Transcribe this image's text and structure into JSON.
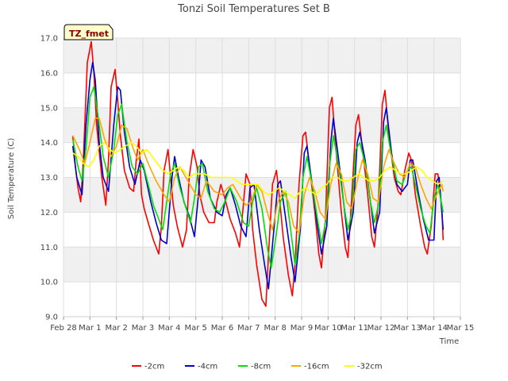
{
  "chart_data": {
    "type": "line",
    "title": "Tonzi Soil Temperatures Set B",
    "xlabel": "Time",
    "ylabel": "Soil Temperature (C)",
    "ylim": [
      9.0,
      17.0
    ],
    "xlim": [
      0,
      15
    ],
    "yticks": [
      "9.0",
      "10.0",
      "11.0",
      "12.0",
      "13.0",
      "14.0",
      "15.0",
      "16.0",
      "17.0"
    ],
    "xticks": [
      "Feb 28",
      "Mar 1",
      "Mar 2",
      "Mar 3",
      "Mar 4",
      "Mar 5",
      "Mar 6",
      "Mar 7",
      "Mar 8",
      "Mar 9",
      "Mar 10",
      "Mar 11",
      "Mar 12",
      "Mar 13",
      "Mar 14",
      "Mar 15"
    ],
    "grid": true,
    "legend_position": "bottom",
    "tag_label": "TZ_fmet",
    "series": [
      {
        "name": "-2cm",
        "color": "#ff0000",
        "x": [
          0.35,
          0.45,
          0.55,
          0.65,
          0.75,
          0.9,
          1.05,
          1.15,
          1.25,
          1.45,
          1.6,
          1.7,
          1.8,
          1.95,
          2.05,
          2.15,
          2.3,
          2.5,
          2.65,
          2.75,
          2.85,
          2.95,
          3.05,
          3.2,
          3.4,
          3.6,
          3.7,
          3.8,
          3.95,
          4.05,
          4.15,
          4.3,
          4.5,
          4.65,
          4.75,
          4.9,
          5.05,
          5.15,
          5.3,
          5.5,
          5.7,
          5.8,
          5.95,
          6.1,
          6.3,
          6.5,
          6.65,
          6.75,
          6.9,
          7.05,
          7.15,
          7.3,
          7.5,
          7.65,
          7.75,
          7.9,
          8.05,
          8.15,
          8.3,
          8.5,
          8.65,
          8.75,
          8.9,
          9.05,
          9.15,
          9.3,
          9.5,
          9.65,
          9.75,
          9.9,
          10.05,
          10.15,
          10.3,
          10.5,
          10.65,
          10.75,
          10.9,
          11.05,
          11.15,
          11.3,
          11.5,
          11.65,
          11.75,
          11.9,
          12.05,
          12.15,
          12.3,
          12.5,
          12.65,
          12.75,
          12.9,
          13.05,
          13.15,
          13.3,
          13.5,
          13.65,
          13.75,
          13.9,
          14.05,
          14.15,
          14.3,
          14.35
        ],
        "y": [
          14.2,
          13.3,
          12.7,
          12.3,
          13.5,
          16.3,
          16.9,
          16.0,
          14.5,
          13.0,
          12.2,
          13.5,
          15.6,
          16.1,
          15.2,
          14.2,
          13.2,
          12.7,
          12.6,
          13.5,
          14.1,
          12.5,
          12.1,
          11.7,
          11.2,
          10.8,
          11.6,
          13.2,
          13.8,
          13.0,
          12.2,
          11.6,
          11.0,
          11.5,
          13.0,
          13.8,
          13.3,
          12.5,
          12.0,
          11.7,
          11.7,
          12.3,
          12.8,
          12.4,
          11.8,
          11.4,
          11.0,
          11.8,
          13.1,
          12.8,
          11.5,
          10.5,
          9.5,
          9.3,
          10.8,
          12.8,
          13.2,
          12.5,
          11.3,
          10.2,
          9.6,
          10.5,
          12.8,
          14.2,
          14.3,
          13.3,
          12.0,
          10.8,
          10.4,
          11.8,
          15.0,
          15.3,
          13.8,
          12.0,
          11.0,
          10.7,
          12.5,
          14.5,
          14.8,
          13.8,
          12.5,
          11.3,
          11.0,
          12.3,
          15.1,
          15.5,
          14.2,
          13.0,
          12.6,
          12.5,
          13.2,
          13.7,
          13.5,
          12.5,
          11.6,
          11.0,
          10.8,
          11.6,
          13.1,
          13.1,
          12.1,
          11.2
        ]
      },
      {
        "name": "-4cm",
        "color": "#0000cc",
        "x": [
          0.35,
          0.5,
          0.7,
          0.85,
          1.0,
          1.1,
          1.2,
          1.35,
          1.5,
          1.7,
          1.9,
          2.05,
          2.15,
          2.3,
          2.5,
          2.7,
          2.9,
          3.05,
          3.3,
          3.5,
          3.7,
          3.9,
          4.1,
          4.2,
          4.35,
          4.55,
          4.75,
          4.95,
          5.1,
          5.2,
          5.35,
          5.55,
          5.8,
          6.0,
          6.15,
          6.3,
          6.5,
          6.7,
          6.9,
          7.05,
          7.2,
          7.4,
          7.6,
          7.75,
          7.95,
          8.1,
          8.2,
          8.4,
          8.6,
          8.75,
          8.95,
          9.1,
          9.2,
          9.4,
          9.6,
          9.75,
          9.95,
          10.1,
          10.2,
          10.4,
          10.6,
          10.75,
          10.95,
          11.1,
          11.2,
          11.4,
          11.6,
          11.75,
          11.95,
          12.1,
          12.2,
          12.4,
          12.6,
          12.8,
          13.0,
          13.1,
          13.2,
          13.4,
          13.6,
          13.8,
          14.0,
          14.1,
          14.2,
          14.35
        ],
        "y": [
          13.9,
          13.0,
          12.5,
          14.5,
          15.8,
          16.3,
          15.8,
          14.0,
          13.0,
          12.6,
          14.5,
          15.6,
          15.5,
          14.3,
          13.3,
          12.8,
          13.5,
          13.2,
          12.3,
          11.7,
          11.2,
          11.1,
          13.0,
          13.6,
          13.0,
          12.3,
          11.9,
          11.3,
          12.5,
          13.5,
          13.3,
          12.4,
          12.0,
          11.9,
          12.5,
          12.7,
          12.2,
          11.6,
          11.3,
          12.7,
          12.8,
          11.5,
          10.5,
          9.8,
          11.5,
          12.8,
          12.9,
          11.8,
          10.7,
          10.0,
          11.5,
          13.7,
          13.9,
          12.8,
          11.6,
          10.8,
          11.6,
          14.0,
          14.7,
          13.5,
          12.2,
          11.2,
          12.0,
          14.0,
          14.3,
          13.5,
          12.3,
          11.4,
          12.0,
          14.6,
          15.0,
          13.7,
          12.8,
          12.6,
          12.8,
          13.5,
          13.5,
          12.6,
          11.8,
          11.2,
          11.2,
          12.9,
          13.0,
          11.5
        ]
      },
      {
        "name": "-8cm",
        "color": "#00e000",
        "x": [
          0.35,
          0.55,
          0.7,
          0.85,
          1.0,
          1.15,
          1.3,
          1.5,
          1.7,
          1.9,
          2.05,
          2.2,
          2.4,
          2.6,
          2.8,
          3.0,
          3.2,
          3.4,
          3.6,
          3.75,
          3.9,
          4.05,
          4.2,
          4.4,
          4.6,
          4.8,
          4.95,
          5.1,
          5.25,
          5.45,
          5.7,
          5.9,
          6.1,
          6.3,
          6.55,
          6.8,
          7.0,
          7.15,
          7.3,
          7.5,
          7.7,
          7.85,
          8.05,
          8.2,
          8.4,
          8.6,
          8.75,
          8.9,
          9.05,
          9.2,
          9.4,
          9.6,
          9.75,
          9.9,
          10.05,
          10.2,
          10.4,
          10.6,
          10.75,
          10.9,
          11.05,
          11.2,
          11.4,
          11.6,
          11.75,
          11.9,
          12.05,
          12.2,
          12.4,
          12.6,
          12.8,
          13.0,
          13.15,
          13.3,
          13.5,
          13.7,
          13.85,
          14.0,
          14.15,
          14.3,
          14.35
        ],
        "y": [
          14.1,
          13.3,
          12.9,
          13.8,
          15.3,
          15.6,
          14.8,
          13.6,
          13.0,
          13.8,
          14.8,
          15.1,
          14.0,
          13.3,
          13.1,
          13.4,
          12.8,
          12.2,
          11.8,
          11.5,
          12.3,
          13.1,
          13.4,
          12.7,
          12.2,
          11.7,
          12.4,
          13.3,
          13.4,
          12.6,
          12.1,
          12.0,
          12.3,
          12.7,
          12.3,
          11.7,
          11.6,
          12.3,
          12.7,
          12.1,
          11.0,
          10.4,
          11.4,
          12.3,
          12.6,
          11.4,
          10.5,
          11.3,
          13.0,
          13.6,
          12.8,
          11.8,
          11.1,
          11.7,
          13.3,
          14.2,
          13.3,
          12.2,
          11.5,
          12.0,
          13.8,
          14.0,
          13.4,
          12.3,
          11.7,
          12.2,
          14.0,
          14.5,
          13.6,
          12.9,
          12.8,
          13.2,
          13.3,
          12.8,
          12.1,
          11.6,
          11.4,
          12.4,
          12.8,
          12.2,
          12.0
        ]
      },
      {
        "name": "-16cm",
        "color": "#ffa500",
        "x": [
          0.35,
          0.6,
          0.8,
          1.0,
          1.2,
          1.35,
          1.55,
          1.8,
          2.0,
          2.2,
          2.4,
          2.6,
          2.8,
          3.0,
          3.2,
          3.5,
          3.8,
          4.0,
          4.2,
          4.4,
          4.7,
          5.0,
          5.2,
          5.4,
          5.7,
          6.0,
          6.2,
          6.4,
          6.7,
          6.9,
          7.1,
          7.3,
          7.5,
          7.7,
          7.9,
          8.1,
          8.3,
          8.5,
          8.7,
          8.9,
          9.1,
          9.3,
          9.5,
          9.7,
          9.9,
          10.1,
          10.3,
          10.5,
          10.7,
          10.9,
          11.1,
          11.3,
          11.5,
          11.7,
          11.9,
          12.1,
          12.3,
          12.5,
          12.7,
          12.9,
          13.1,
          13.3,
          13.5,
          13.7,
          13.9,
          14.1,
          14.3,
          14.35
        ],
        "y": [
          14.2,
          13.8,
          13.4,
          14.0,
          14.7,
          14.7,
          14.1,
          13.6,
          13.9,
          14.5,
          14.4,
          13.9,
          13.5,
          13.8,
          13.4,
          12.9,
          12.5,
          12.3,
          13.0,
          13.3,
          12.9,
          12.5,
          12.4,
          12.9,
          12.6,
          12.5,
          12.7,
          12.8,
          12.4,
          12.2,
          12.3,
          12.8,
          12.6,
          12.0,
          11.5,
          12.3,
          12.6,
          12.3,
          11.6,
          11.4,
          12.5,
          13.0,
          12.6,
          12.0,
          11.8,
          12.8,
          13.4,
          13.1,
          12.3,
          12.1,
          12.9,
          13.5,
          13.1,
          12.4,
          12.3,
          13.3,
          13.8,
          13.4,
          13.1,
          13.0,
          13.4,
          13.3,
          12.8,
          12.4,
          12.1,
          12.5,
          12.8,
          12.6
        ]
      },
      {
        "name": "-32cm",
        "color": "#ffff00",
        "x": [
          0.35,
          0.55,
          0.75,
          0.95,
          1.15,
          1.35,
          1.55,
          1.75,
          1.95,
          2.15,
          2.35,
          2.55,
          2.75,
          2.95,
          3.15,
          3.35,
          3.55,
          3.75,
          3.95,
          4.15,
          4.35,
          4.55,
          4.75,
          4.95,
          5.15,
          5.35,
          5.55,
          5.75,
          5.95,
          6.15,
          6.35,
          6.55,
          6.75,
          6.95,
          7.15,
          7.35,
          7.55,
          7.75,
          7.95,
          8.15,
          8.35,
          8.55,
          8.75,
          8.95,
          9.15,
          9.35,
          9.55,
          9.75,
          9.95,
          10.15,
          10.35,
          10.55,
          10.75,
          10.95,
          11.15,
          11.35,
          11.55,
          11.75,
          11.95,
          12.15,
          12.35,
          12.55,
          12.75,
          12.95,
          13.15,
          13.35,
          13.55,
          13.75,
          13.95,
          14.15,
          14.35
        ],
        "y": [
          13.7,
          13.6,
          13.4,
          13.3,
          13.5,
          13.9,
          14.0,
          13.8,
          13.7,
          13.8,
          13.9,
          14.0,
          13.9,
          13.7,
          13.8,
          13.6,
          13.4,
          13.2,
          13.1,
          13.2,
          13.3,
          13.2,
          13.0,
          13.1,
          13.1,
          13.1,
          13.0,
          13.0,
          13.0,
          13.0,
          13.0,
          12.9,
          12.8,
          12.8,
          12.8,
          12.8,
          12.6,
          12.5,
          12.6,
          12.7,
          12.6,
          12.5,
          12.4,
          12.6,
          12.7,
          12.6,
          12.5,
          12.7,
          12.8,
          13.0,
          13.0,
          12.9,
          12.9,
          13.0,
          13.1,
          13.0,
          12.9,
          12.9,
          13.0,
          13.2,
          13.3,
          13.2,
          13.1,
          13.1,
          13.2,
          13.3,
          13.2,
          13.0,
          12.9,
          12.8,
          12.9
        ]
      }
    ]
  }
}
